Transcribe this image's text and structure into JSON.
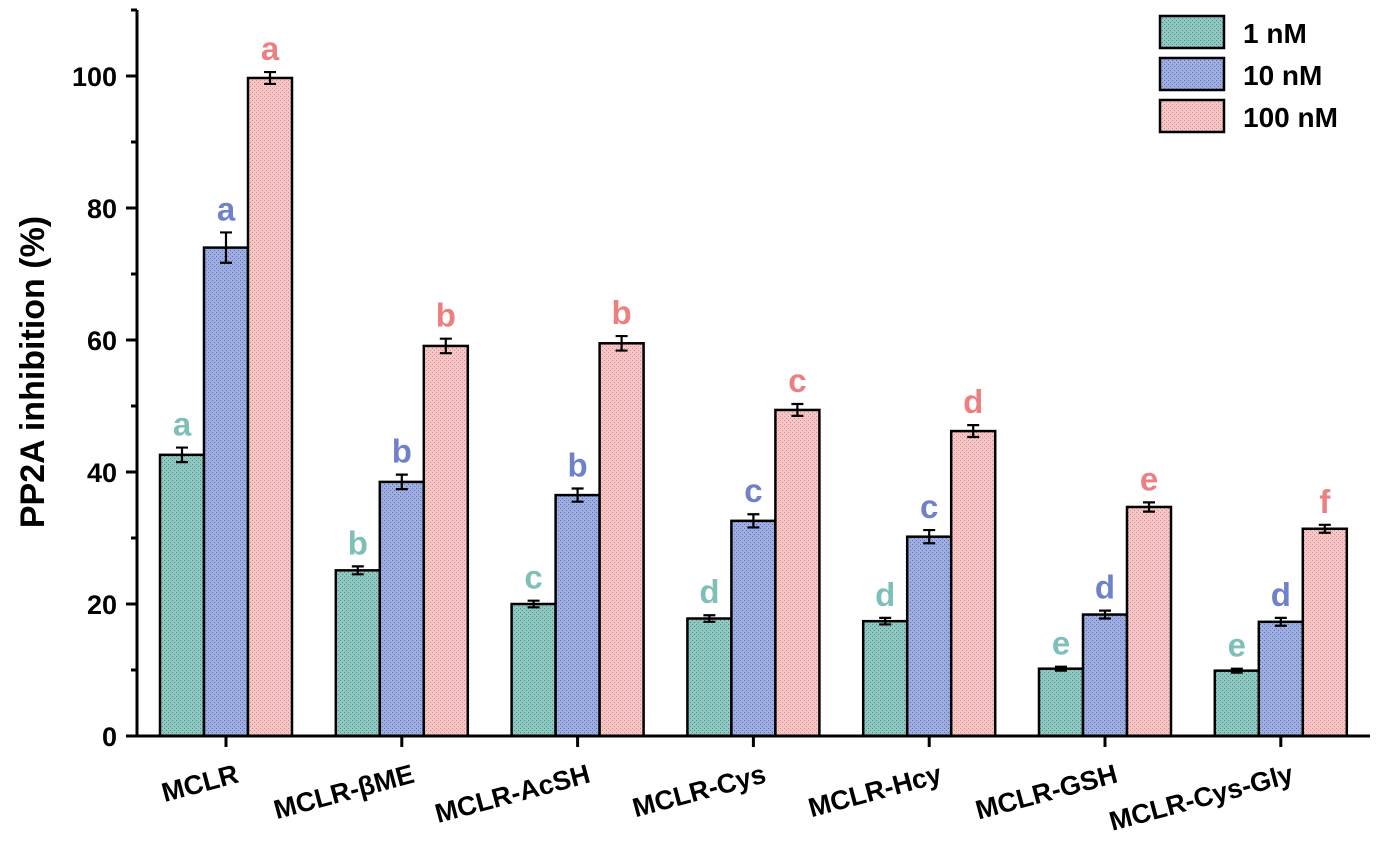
{
  "chart_data": {
    "type": "bar",
    "title": "",
    "xlabel": "",
    "ylabel": "PP2A inhibition (%)",
    "ylim": [
      0,
      110
    ],
    "yticks": [
      0,
      20,
      40,
      60,
      80,
      100
    ],
    "grid": false,
    "legend_position": "top-right",
    "categories": [
      "MCLR",
      "MCLR-βME",
      "MCLR-AcSH",
      "MCLR-Cys",
      "MCLR-Hcy",
      "MCLR-GSH",
      "MCLR-Cys-Gly"
    ],
    "series": [
      {
        "name": "1 nM",
        "color": "#7fbfb9",
        "label_color": "#7fbfb9",
        "values": [
          42.6,
          25.1,
          20.0,
          17.8,
          17.4,
          10.2,
          9.9
        ],
        "errors": [
          1.1,
          0.6,
          0.5,
          0.5,
          0.5,
          0.3,
          0.3
        ],
        "letters": [
          "a",
          "b",
          "c",
          "d",
          "d",
          "e",
          "e"
        ]
      },
      {
        "name": "10 nM",
        "color": "#8ea1d6",
        "label_color": "#6f82c9",
        "values": [
          74.0,
          38.5,
          36.5,
          32.6,
          30.2,
          18.4,
          17.3
        ],
        "errors": [
          2.3,
          1.1,
          1.0,
          1.0,
          1.0,
          0.6,
          0.6
        ],
        "letters": [
          "a",
          "b",
          "b",
          "c",
          "c",
          "d",
          "d"
        ]
      },
      {
        "name": "100 nM",
        "color": "#f2b8b8",
        "label_color": "#ec7f7f",
        "values": [
          99.7,
          59.1,
          59.5,
          49.4,
          46.2,
          34.7,
          31.4
        ],
        "errors": [
          0.9,
          1.1,
          1.1,
          0.9,
          0.9,
          0.7,
          0.6
        ],
        "letters": [
          "a",
          "b",
          "b",
          "c",
          "d",
          "e",
          "f"
        ]
      }
    ]
  }
}
